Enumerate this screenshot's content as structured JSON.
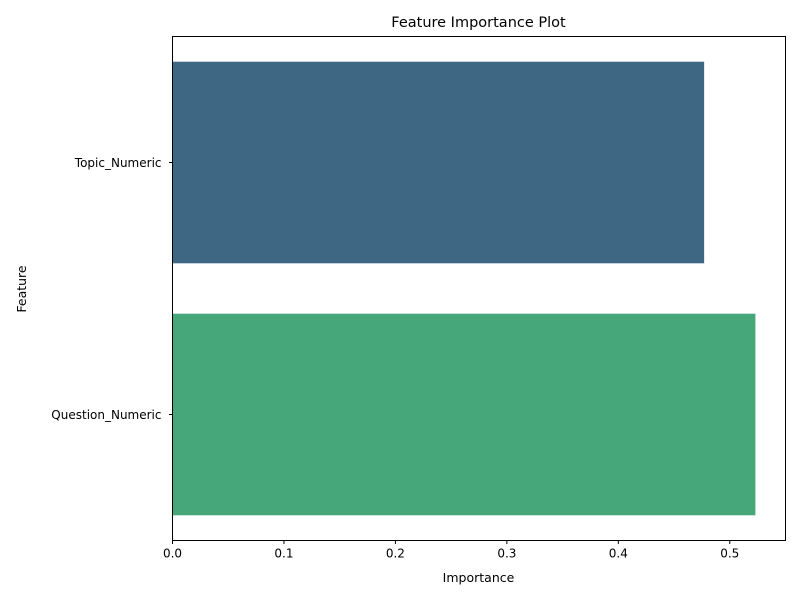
{
  "chart_data": {
    "type": "bar",
    "orientation": "horizontal",
    "title": "Feature Importance Plot",
    "xlabel": "Importance",
    "ylabel": "Feature",
    "categories": [
      "Topic_Numeric",
      "Question_Numeric"
    ],
    "values": [
      0.477,
      0.523
    ],
    "colors": [
      "#3e6784",
      "#46a77a"
    ],
    "xlim": [
      0,
      0.55
    ],
    "xticks": [
      0.0,
      0.1,
      0.2,
      0.3,
      0.4,
      0.5
    ],
    "xtick_labels": [
      "0.0",
      "0.1",
      "0.2",
      "0.3",
      "0.4",
      "0.5"
    ],
    "grid": false,
    "legend": false
  }
}
